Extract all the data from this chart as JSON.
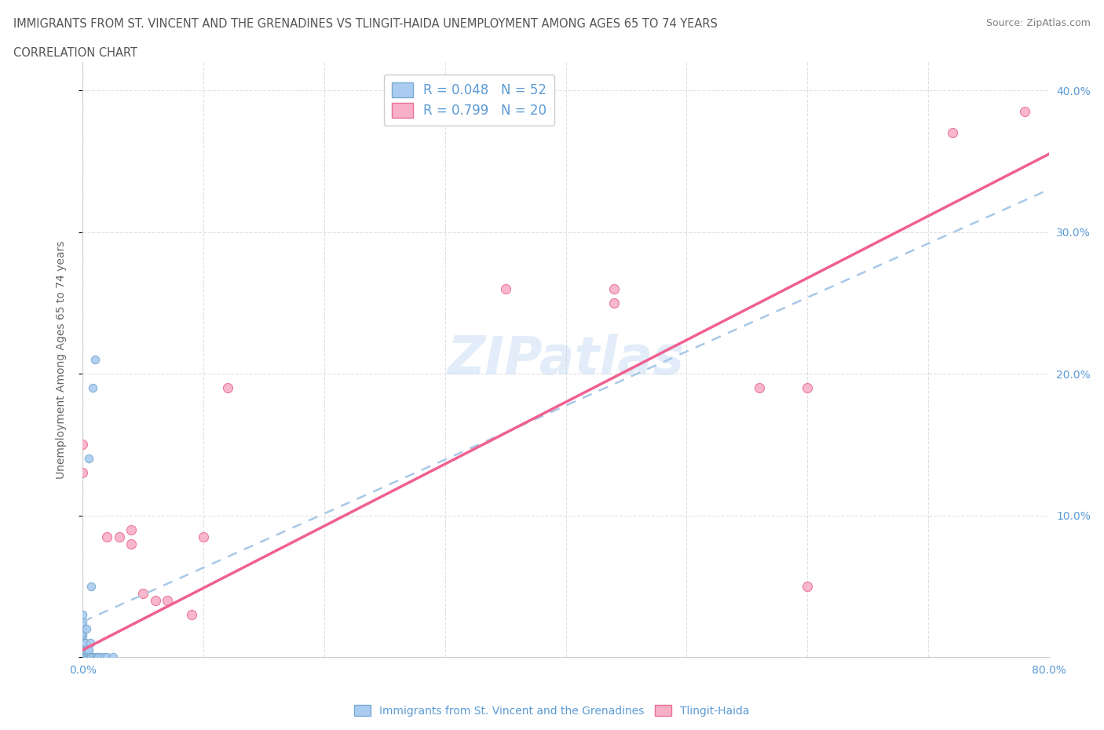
{
  "title_line1": "IMMIGRANTS FROM ST. VINCENT AND THE GRENADINES VS TLINGIT-HAIDA UNEMPLOYMENT AMONG AGES 65 TO 74 YEARS",
  "title_line2": "CORRELATION CHART",
  "source_text": "Source: ZipAtlas.com",
  "ylabel": "Unemployment Among Ages 65 to 74 years",
  "xlim": [
    0.0,
    0.8
  ],
  "ylim": [
    0.0,
    0.42
  ],
  "watermark": "ZIPatlas",
  "blue_R": 0.048,
  "blue_N": 52,
  "pink_R": 0.799,
  "pink_N": 20,
  "blue_scatter_x": [
    0.0,
    0.0,
    0.0,
    0.0,
    0.0,
    0.0,
    0.0,
    0.0,
    0.0,
    0.0,
    0.0,
    0.0,
    0.0,
    0.0,
    0.0,
    0.0,
    0.0,
    0.0,
    0.0,
    0.0,
    0.0,
    0.0,
    0.001,
    0.001,
    0.001,
    0.001,
    0.001,
    0.002,
    0.002,
    0.002,
    0.003,
    0.003,
    0.003,
    0.004,
    0.004,
    0.005,
    0.005,
    0.005,
    0.006,
    0.006,
    0.007,
    0.007,
    0.008,
    0.009,
    0.01,
    0.011,
    0.012,
    0.013,
    0.015,
    0.018,
    0.02,
    0.025
  ],
  "blue_scatter_y": [
    0.0,
    0.0,
    0.0,
    0.0,
    0.0,
    0.0,
    0.002,
    0.003,
    0.004,
    0.005,
    0.005,
    0.007,
    0.01,
    0.01,
    0.01,
    0.015,
    0.016,
    0.018,
    0.02,
    0.022,
    0.025,
    0.03,
    0.0,
    0.0,
    0.0,
    0.005,
    0.01,
    0.0,
    0.005,
    0.01,
    0.0,
    0.005,
    0.02,
    0.0,
    0.005,
    0.0,
    0.005,
    0.14,
    0.0,
    0.01,
    0.0,
    0.05,
    0.19,
    0.0,
    0.21,
    0.0,
    0.0,
    0.0,
    0.0,
    0.0,
    0.0,
    0.0
  ],
  "pink_scatter_x": [
    0.0,
    0.0,
    0.02,
    0.03,
    0.04,
    0.04,
    0.05,
    0.06,
    0.07,
    0.09,
    0.1,
    0.12,
    0.35,
    0.44,
    0.44,
    0.56,
    0.6,
    0.6,
    0.72,
    0.78
  ],
  "pink_scatter_y": [
    0.13,
    0.15,
    0.085,
    0.085,
    0.08,
    0.09,
    0.045,
    0.04,
    0.04,
    0.03,
    0.085,
    0.19,
    0.26,
    0.25,
    0.26,
    0.19,
    0.19,
    0.05,
    0.37,
    0.385
  ],
  "blue_line_x0": 0.0,
  "blue_line_x1": 0.8,
  "blue_line_y0": 0.025,
  "blue_line_y1": 0.33,
  "pink_line_x0": 0.0,
  "pink_line_x1": 0.8,
  "pink_line_y0": 0.005,
  "pink_line_y1": 0.355,
  "blue_line_color": "#a8c8e8",
  "pink_line_color": "#f06090",
  "blue_scatter_color": "#aaccf0",
  "blue_scatter_edge": "#7aaad0",
  "pink_scatter_color": "#f8b0c8",
  "pink_scatter_edge": "#e87090",
  "grid_color": "#e0e0e0",
  "background_color": "#ffffff",
  "title_color": "#555555",
  "axis_color": "#5b9bd5",
  "legend_label_blue": "Immigrants from St. Vincent and the Grenadines",
  "legend_label_pink": "Tlingit-Haida"
}
